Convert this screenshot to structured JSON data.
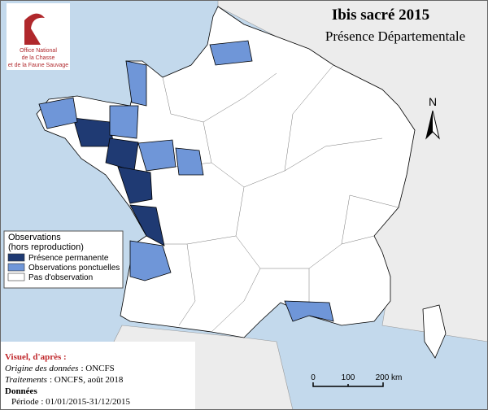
{
  "header": {
    "title": "Ibis sacré 2015",
    "subtitle": "Présence Départementale"
  },
  "logo": {
    "lines": [
      "Office National",
      "de la Chasse",
      "et de la Faune Sauvage"
    ]
  },
  "legend": {
    "title": [
      "Observations",
      "(hors reproduction)"
    ],
    "items": [
      {
        "label": "Présence permanente",
        "color": "#1f3a73"
      },
      {
        "label": "Observations ponctuelles",
        "color": "#6f96d8"
      },
      {
        "label": "Pas d'observation",
        "color": "#ffffff"
      }
    ]
  },
  "credits": {
    "heading": "Visuel, d'après :",
    "lines": [
      {
        "label": "Origine des données",
        "text": ": ONCFS"
      },
      {
        "label": "Traitements",
        "text": ": ONCFS, août 2018"
      }
    ],
    "data_heading": "Données",
    "period": "Période : 01/01/2015-31/12/2015"
  },
  "scale": {
    "labels": [
      "0",
      "100",
      "200 km"
    ]
  },
  "north": "N"
}
